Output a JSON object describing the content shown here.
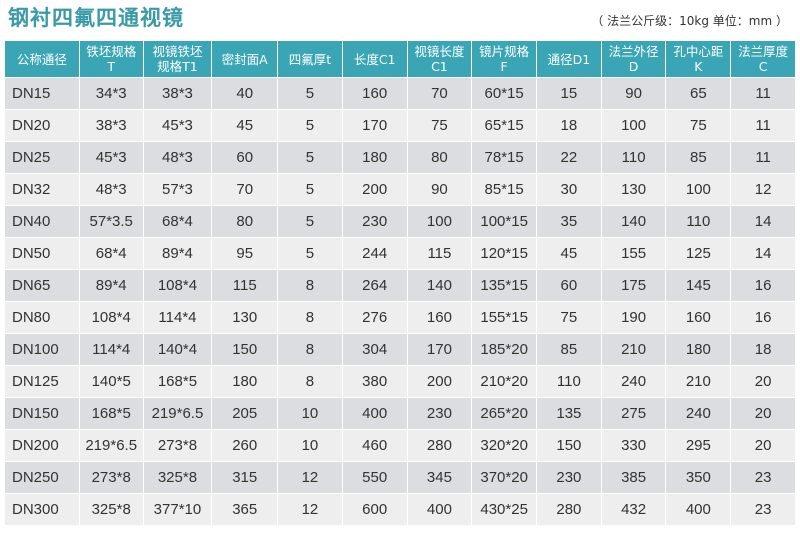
{
  "header": {
    "title": "钢衬四氟四通视镜",
    "note": "（ 法兰公斤级：10kg   单位：mm ）"
  },
  "table": {
    "columns": [
      {
        "line1": "公称通径",
        "line2": ""
      },
      {
        "line1": "铁坯规格",
        "line2": "T"
      },
      {
        "line1": "视镜铁坯",
        "line2": "规格T1"
      },
      {
        "line1": "密封面A",
        "line2": ""
      },
      {
        "line1": "四氟厚t",
        "line2": ""
      },
      {
        "line1": "长度C1",
        "line2": ""
      },
      {
        "line1": "视镜长度",
        "line2": "C1"
      },
      {
        "line1": "镜片规格",
        "line2": "F"
      },
      {
        "line1": "通径D1",
        "line2": ""
      },
      {
        "line1": "法兰外径",
        "line2": "D"
      },
      {
        "line1": "孔中心距",
        "line2": "K"
      },
      {
        "line1": "法兰厚度",
        "line2": "C"
      }
    ],
    "rows": [
      [
        "DN15",
        "34*3",
        "38*3",
        "40",
        "5",
        "160",
        "70",
        "60*15",
        "15",
        "90",
        "65",
        "11"
      ],
      [
        "DN20",
        "38*3",
        "45*3",
        "45",
        "5",
        "170",
        "75",
        "65*15",
        "18",
        "100",
        "75",
        "11"
      ],
      [
        "DN25",
        "45*3",
        "48*3",
        "60",
        "5",
        "180",
        "80",
        "78*15",
        "22",
        "110",
        "85",
        "11"
      ],
      [
        "DN32",
        "48*3",
        "57*3",
        "70",
        "5",
        "200",
        "90",
        "85*15",
        "30",
        "130",
        "100",
        "12"
      ],
      [
        "DN40",
        "57*3.5",
        "68*4",
        "80",
        "5",
        "230",
        "100",
        "100*15",
        "35",
        "140",
        "110",
        "14"
      ],
      [
        "DN50",
        "68*4",
        "89*4",
        "95",
        "5",
        "244",
        "115",
        "120*15",
        "45",
        "155",
        "125",
        "14"
      ],
      [
        "DN65",
        "89*4",
        "108*4",
        "115",
        "8",
        "264",
        "140",
        "135*15",
        "60",
        "175",
        "145",
        "16"
      ],
      [
        "DN80",
        "108*4",
        "114*4",
        "130",
        "8",
        "276",
        "160",
        "155*15",
        "75",
        "190",
        "160",
        "16"
      ],
      [
        "DN100",
        "114*4",
        "140*4",
        "150",
        "8",
        "304",
        "170",
        "185*20",
        "85",
        "210",
        "180",
        "18"
      ],
      [
        "DN125",
        "140*5",
        "168*5",
        "180",
        "8",
        "380",
        "200",
        "210*20",
        "110",
        "240",
        "210",
        "20"
      ],
      [
        "DN150",
        "168*5",
        "219*6.5",
        "205",
        "10",
        "400",
        "230",
        "265*20",
        "135",
        "275",
        "240",
        "20"
      ],
      [
        "DN200",
        "219*6.5",
        "273*8",
        "260",
        "10",
        "460",
        "280",
        "320*20",
        "150",
        "330",
        "295",
        "20"
      ],
      [
        "DN250",
        "273*8",
        "325*8",
        "315",
        "12",
        "550",
        "345",
        "370*20",
        "230",
        "385",
        "350",
        "23"
      ],
      [
        "DN300",
        "325*8",
        "377*10",
        "365",
        "12",
        "600",
        "400",
        "430*25",
        "280",
        "432",
        "400",
        "23"
      ]
    ]
  }
}
